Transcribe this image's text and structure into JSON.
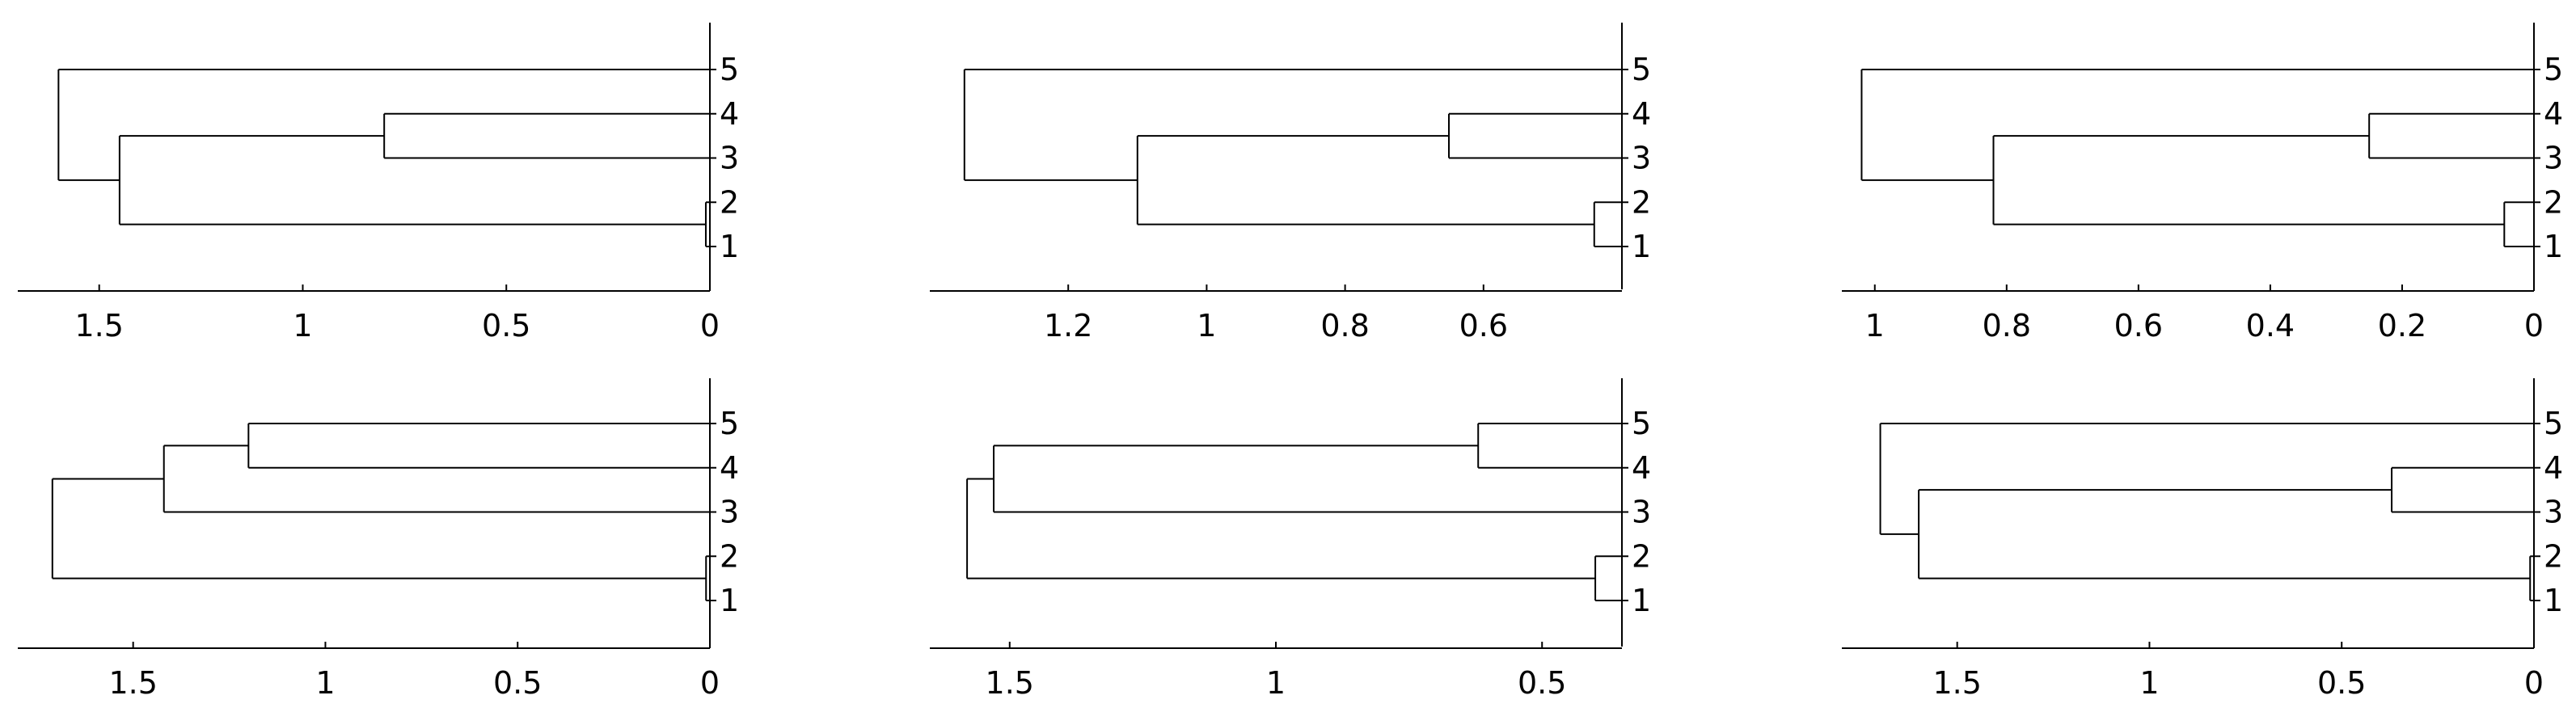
{
  "chart_data": [
    {
      "type": "dendrogram",
      "orientation": "right",
      "xlim": [
        1.7,
        0
      ],
      "ticks": [
        1.5,
        1,
        0.5,
        0
      ],
      "tick_labels": [
        "1.5",
        "1",
        "0.5",
        "0"
      ],
      "leaves": [
        "1",
        "2",
        "3",
        "4",
        "5"
      ],
      "merges": [
        {
          "a": "leaf:1",
          "b": "leaf:2",
          "h": 0.01
        },
        {
          "a": "leaf:3",
          "b": "leaf:4",
          "h": 0.8
        },
        {
          "a": "node:0",
          "b": "node:1",
          "h": 1.45
        },
        {
          "a": "node:2",
          "b": "leaf:5",
          "h": 1.6
        }
      ],
      "title": "",
      "xlabel": "",
      "ylabel": "",
      "grid": false
    },
    {
      "type": "dendrogram",
      "orientation": "right",
      "xlim": [
        1.4,
        0.4
      ],
      "ticks": [
        1.2,
        1,
        0.8,
        0.6
      ],
      "tick_labels": [
        "1.2",
        "1",
        "0.8",
        "0.6"
      ],
      "leaves": [
        "1",
        "2",
        "3",
        "4",
        "5"
      ],
      "merges": [
        {
          "a": "leaf:1",
          "b": "leaf:2",
          "h": 0.44
        },
        {
          "a": "leaf:3",
          "b": "leaf:4",
          "h": 0.65
        },
        {
          "a": "node:0",
          "b": "node:1",
          "h": 1.1
        },
        {
          "a": "node:2",
          "b": "leaf:5",
          "h": 1.35
        }
      ],
      "title": "",
      "xlabel": "",
      "ylabel": "",
      "grid": false
    },
    {
      "type": "dendrogram",
      "orientation": "right",
      "xlim": [
        1.05,
        0
      ],
      "ticks": [
        1,
        0.8,
        0.6,
        0.4,
        0.2,
        0
      ],
      "tick_labels": [
        "1",
        "0.8",
        "0.6",
        "0.4",
        "0.2",
        "0"
      ],
      "leaves": [
        "1",
        "2",
        "3",
        "4",
        "5"
      ],
      "merges": [
        {
          "a": "leaf:1",
          "b": "leaf:2",
          "h": 0.045
        },
        {
          "a": "leaf:3",
          "b": "leaf:4",
          "h": 0.25
        },
        {
          "a": "node:0",
          "b": "node:1",
          "h": 0.82
        },
        {
          "a": "node:2",
          "b": "leaf:5",
          "h": 1.02
        }
      ],
      "title": "",
      "xlabel": "",
      "ylabel": "",
      "grid": false
    },
    {
      "type": "dendrogram",
      "orientation": "right",
      "xlim": [
        1.8,
        0
      ],
      "ticks": [
        1.5,
        1,
        0.5,
        0
      ],
      "tick_labels": [
        "1.5",
        "1",
        "0.5",
        "0"
      ],
      "leaves": [
        "1",
        "2",
        "3",
        "4",
        "5"
      ],
      "merges": [
        {
          "a": "leaf:1",
          "b": "leaf:2",
          "h": 0.01
        },
        {
          "a": "leaf:4",
          "b": "leaf:5",
          "h": 1.2
        },
        {
          "a": "leaf:3",
          "b": "node:1",
          "h": 1.42
        },
        {
          "a": "node:0",
          "b": "node:2",
          "h": 1.71
        }
      ],
      "title": "",
      "xlabel": "",
      "ylabel": "",
      "grid": false
    },
    {
      "type": "dendrogram",
      "orientation": "right",
      "xlim": [
        1.65,
        0.35
      ],
      "ticks": [
        1.5,
        1,
        0.5
      ],
      "tick_labels": [
        "1.5",
        "1",
        "0.5"
      ],
      "leaves": [
        "1",
        "2",
        "3",
        "4",
        "5"
      ],
      "merges": [
        {
          "a": "leaf:1",
          "b": "leaf:2",
          "h": 0.4
        },
        {
          "a": "leaf:4",
          "b": "leaf:5",
          "h": 0.62
        },
        {
          "a": "leaf:3",
          "b": "node:1",
          "h": 1.53
        },
        {
          "a": "node:0",
          "b": "node:2",
          "h": 1.58
        }
      ],
      "title": "",
      "xlabel": "",
      "ylabel": "",
      "grid": false
    },
    {
      "type": "dendrogram",
      "orientation": "right",
      "xlim": [
        1.8,
        0
      ],
      "ticks": [
        1.5,
        1,
        0.5,
        0
      ],
      "tick_labels": [
        "1.5",
        "1",
        "0.5",
        "0"
      ],
      "leaves": [
        "1",
        "2",
        "3",
        "4",
        "5"
      ],
      "merges": [
        {
          "a": "leaf:1",
          "b": "leaf:2",
          "h": 0.01
        },
        {
          "a": "leaf:3",
          "b": "leaf:4",
          "h": 0.37
        },
        {
          "a": "node:0",
          "b": "node:1",
          "h": 1.6
        },
        {
          "a": "node:2",
          "b": "leaf:5",
          "h": 1.7
        }
      ],
      "title": "",
      "xlabel": "",
      "ylabel": "",
      "grid": false
    }
  ]
}
